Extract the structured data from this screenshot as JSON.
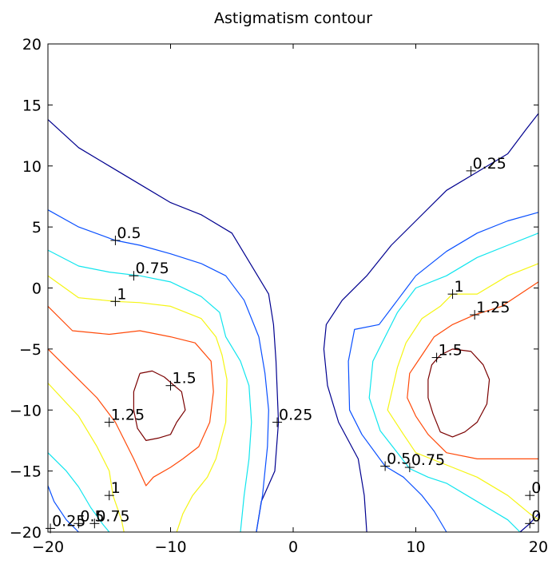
{
  "chart_data": {
    "type": "contour",
    "title": "Astigmatism contour",
    "xlabel": "",
    "ylabel": "",
    "xlim": [
      -20,
      20
    ],
    "ylim": [
      -20,
      20
    ],
    "x_ticks": [
      -20,
      -10,
      0,
      10,
      20
    ],
    "y_ticks": [
      20,
      15,
      10,
      5,
      0,
      -5,
      -10,
      -15,
      -20
    ],
    "x_tick_labels": [
      "−20",
      "−10",
      "0",
      "10",
      "20"
    ],
    "y_tick_labels": [
      "20",
      "15",
      "10",
      "5",
      "0",
      "−5",
      "−10",
      "−15",
      "−20"
    ],
    "grid": false,
    "levels": [
      {
        "level": 0.25,
        "color": "#00008f",
        "paths": [
          [
            [
              -20,
              13.8
            ],
            [
              -17.5,
              11.5
            ],
            [
              -15,
              10
            ],
            [
              -12.5,
              8.5
            ],
            [
              -10,
              7
            ],
            [
              -7.5,
              6
            ],
            [
              -5,
              4.5
            ],
            [
              -3.5,
              2
            ],
            [
              -2,
              -0.5
            ],
            [
              -1.6,
              -3
            ],
            [
              -1.4,
              -6
            ],
            [
              -1.2,
              -11
            ],
            [
              -1.5,
              -15
            ],
            [
              -2.6,
              -17.5
            ],
            [
              -3,
              -20
            ]
          ],
          [
            [
              20,
              14.3
            ],
            [
              19,
              13
            ],
            [
              17.5,
              11
            ],
            [
              15,
              9.5
            ],
            [
              12.5,
              8
            ],
            [
              10,
              5.5
            ],
            [
              8,
              3.5
            ],
            [
              6,
              1
            ],
            [
              4,
              -1
            ],
            [
              2.7,
              -3
            ],
            [
              2.5,
              -5
            ],
            [
              2.8,
              -8
            ],
            [
              3.7,
              -11
            ],
            [
              5.3,
              -14
            ],
            [
              5.8,
              -17
            ],
            [
              6,
              -20
            ]
          ],
          [
            [
              18.5,
              -20
            ],
            [
              19.3,
              -19.3
            ],
            [
              20,
              -18.5
            ]
          ]
        ]
      },
      {
        "level": 0.5,
        "color": "#0a50ff",
        "paths": [
          [
            [
              -20,
              6.4
            ],
            [
              -17.5,
              5
            ],
            [
              -14.5,
              3.9
            ],
            [
              -12.5,
              3.5
            ],
            [
              -10,
              2.8
            ],
            [
              -7.5,
              2
            ],
            [
              -5.5,
              1
            ],
            [
              -4,
              -1
            ],
            [
              -2.8,
              -4
            ],
            [
              -2.3,
              -7
            ],
            [
              -2,
              -10
            ],
            [
              -2.1,
              -13
            ],
            [
              -2.5,
              -17
            ],
            [
              -3,
              -20
            ]
          ],
          [
            [
              20,
              6.2
            ],
            [
              17.5,
              5.5
            ],
            [
              15,
              4.5
            ],
            [
              12.5,
              3
            ],
            [
              10,
              1
            ],
            [
              8.5,
              -1
            ],
            [
              7,
              -3
            ],
            [
              5,
              -3.4
            ],
            [
              4.5,
              -6
            ],
            [
              4.6,
              -10
            ],
            [
              5.6,
              -12
            ],
            [
              7.5,
              -14.6
            ],
            [
              9,
              -15.5
            ],
            [
              10.5,
              -17
            ],
            [
              11.5,
              -18.3
            ],
            [
              12.5,
              -20
            ]
          ],
          [
            [
              -20,
              -16.2
            ],
            [
              -19.5,
              -17.5
            ],
            [
              -18.5,
              -19
            ],
            [
              -17.5,
              -20
            ]
          ]
        ]
      },
      {
        "level": 0.75,
        "color": "#10e5ee",
        "paths": [
          [
            [
              -20,
              3.1
            ],
            [
              -17.5,
              1.8
            ],
            [
              -15,
              1.3
            ],
            [
              -12.5,
              1
            ],
            [
              -10,
              0.5
            ],
            [
              -7.5,
              -0.7
            ],
            [
              -6,
              -2
            ],
            [
              -5.5,
              -4
            ],
            [
              -4.3,
              -6
            ],
            [
              -3.6,
              -8
            ],
            [
              -3.4,
              -11
            ],
            [
              -3.6,
              -14
            ],
            [
              -4,
              -17
            ],
            [
              -4.3,
              -20
            ]
          ],
          [
            [
              20,
              4.5
            ],
            [
              17.5,
              3.5
            ],
            [
              15,
              2.5
            ],
            [
              12.5,
              1
            ],
            [
              10,
              0
            ],
            [
              8.5,
              -2
            ],
            [
              7.5,
              -4
            ],
            [
              6.5,
              -6
            ],
            [
              6.2,
              -9
            ],
            [
              7.1,
              -11.7
            ],
            [
              8.5,
              -13.5
            ],
            [
              9.5,
              -14.8
            ],
            [
              11,
              -15.5
            ],
            [
              12.5,
              -16
            ],
            [
              15,
              -17.5
            ],
            [
              17.5,
              -19
            ],
            [
              18.5,
              -20
            ]
          ],
          [
            [
              -20,
              -13.5
            ],
            [
              -18.5,
              -15
            ],
            [
              -17.5,
              -16.3
            ],
            [
              -16.5,
              -18
            ],
            [
              -15.5,
              -19.4
            ],
            [
              -15,
              -20
            ]
          ]
        ]
      },
      {
        "level": 1,
        "color": "#f5f514",
        "paths": [
          [
            [
              -20,
              1
            ],
            [
              -17.5,
              -0.8
            ],
            [
              -14.5,
              -1.1
            ],
            [
              -12.5,
              -1.2
            ],
            [
              -10,
              -1.5
            ],
            [
              -7.5,
              -2.5
            ],
            [
              -6.3,
              -4
            ],
            [
              -5.8,
              -5.5
            ],
            [
              -5.4,
              -7.5
            ],
            [
              -5.5,
              -11
            ],
            [
              -6.3,
              -14
            ],
            [
              -7,
              -15.5
            ],
            [
              -8.2,
              -17
            ],
            [
              -9,
              -18.5
            ],
            [
              -9.5,
              -20
            ]
          ],
          [
            [
              20,
              2
            ],
            [
              17.5,
              1
            ],
            [
              15,
              -0.5
            ],
            [
              13,
              -0.5
            ],
            [
              12,
              -1.5
            ],
            [
              10.5,
              -2.5
            ],
            [
              9.2,
              -4.5
            ],
            [
              8.5,
              -6.5
            ],
            [
              7.7,
              -10
            ],
            [
              9,
              -12
            ],
            [
              10,
              -13.5
            ],
            [
              12.5,
              -14.5
            ],
            [
              15,
              -15.5
            ],
            [
              17.5,
              -17
            ],
            [
              19.3,
              -18.5
            ],
            [
              20,
              -19
            ]
          ],
          [
            [
              -20,
              -7.8
            ],
            [
              -17.5,
              -10.5
            ],
            [
              -16,
              -13
            ],
            [
              -15,
              -15
            ],
            [
              -14.7,
              -17
            ],
            [
              -14,
              -19
            ],
            [
              -13.8,
              -20
            ]
          ]
        ]
      },
      {
        "level": 1.25,
        "color": "#ff4a0a",
        "paths": [
          [
            [
              -20,
              -1.5
            ],
            [
              -18,
              -3.5
            ],
            [
              -15,
              -3.8
            ],
            [
              -12.5,
              -3.5
            ],
            [
              -10,
              -4
            ],
            [
              -8,
              -4.5
            ],
            [
              -6.7,
              -6
            ],
            [
              -6.5,
              -8.5
            ],
            [
              -6.8,
              -11
            ],
            [
              -7.7,
              -13
            ],
            [
              -9,
              -14
            ],
            [
              -10,
              -14.7
            ],
            [
              -11.4,
              -15.5
            ],
            [
              -12,
              -16.2
            ],
            [
              -13,
              -14
            ],
            [
              -14.5,
              -11
            ],
            [
              -16,
              -9
            ],
            [
              -18,
              -7
            ],
            [
              -20,
              -5
            ]
          ],
          [
            [
              20,
              0.5
            ],
            [
              18.5,
              -0.5
            ],
            [
              17,
              -1.5
            ],
            [
              14.8,
              -2.2
            ],
            [
              13,
              -3
            ],
            [
              11.5,
              -4
            ],
            [
              10.5,
              -5.5
            ],
            [
              9.5,
              -7
            ],
            [
              9.3,
              -9
            ],
            [
              10,
              -10.5
            ],
            [
              11,
              -12
            ],
            [
              12.5,
              -13.5
            ],
            [
              15,
              -14
            ],
            [
              17.5,
              -14
            ],
            [
              19,
              -14
            ],
            [
              20,
              -14
            ]
          ]
        ]
      },
      {
        "level": 1.5,
        "color": "#7a0000",
        "paths": [
          [
            [
              -12.5,
              -7
            ],
            [
              -11.5,
              -6.8
            ],
            [
              -10.5,
              -7.3
            ],
            [
              -9.7,
              -8
            ],
            [
              -9.1,
              -8.5
            ],
            [
              -8.8,
              -10
            ],
            [
              -9.5,
              -11
            ],
            [
              -10,
              -12
            ],
            [
              -11,
              -12.3
            ],
            [
              -12,
              -12.5
            ],
            [
              -12.7,
              -11.5
            ],
            [
              -13,
              -10
            ],
            [
              -13,
              -8.5
            ],
            [
              -12.5,
              -7
            ]
          ],
          [
            [
              13,
              -5
            ],
            [
              14.5,
              -5.2
            ],
            [
              15.5,
              -6.3
            ],
            [
              16,
              -7.5
            ],
            [
              15.8,
              -9.5
            ],
            [
              15,
              -11
            ],
            [
              14,
              -11.8
            ],
            [
              13,
              -12.2
            ],
            [
              12,
              -11.8
            ],
            [
              11.4,
              -10.3
            ],
            [
              11,
              -9
            ],
            [
              11,
              -7.5
            ],
            [
              11.3,
              -6.3
            ],
            [
              12,
              -5.5
            ],
            [
              13,
              -5
            ]
          ]
        ]
      }
    ],
    "annotations": [
      {
        "text": "0.25",
        "x": 14.5,
        "y": 9.6
      },
      {
        "text": "0.5",
        "x": -14.5,
        "y": 3.9
      },
      {
        "text": "0.75",
        "x": -13,
        "y": 1
      },
      {
        "text": "1",
        "x": -14.5,
        "y": -1.1
      },
      {
        "text": "1",
        "x": 13,
        "y": -0.5
      },
      {
        "text": "1.25",
        "x": 14.8,
        "y": -2.2
      },
      {
        "text": "1.5",
        "x": 11.7,
        "y": -5.7
      },
      {
        "text": "1.5",
        "x": -10,
        "y": -8
      },
      {
        "text": "0.25",
        "x": -1.3,
        "y": -11
      },
      {
        "text": "1.25",
        "x": -15,
        "y": -11
      },
      {
        "text": "0.5",
        "x": 7.5,
        "y": -14.6
      },
      {
        "text": "0.75",
        "x": 9.5,
        "y": -14.7
      },
      {
        "text": "1",
        "x": -15,
        "y": -17
      },
      {
        "text": "0.75",
        "x": -16.2,
        "y": -19.3
      },
      {
        "text": "0.5",
        "x": -17.5,
        "y": -19.3
      },
      {
        "text": "0.25",
        "x": -19.8,
        "y": -19.7
      },
      {
        "text": "0",
        "x": 19.3,
        "y": -17
      },
      {
        "text": "0",
        "x": 19.3,
        "y": -19.3
      }
    ]
  }
}
